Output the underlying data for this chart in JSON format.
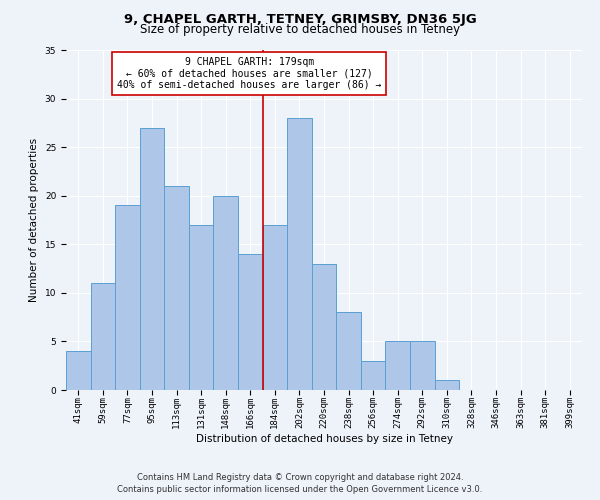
{
  "title": "9, CHAPEL GARTH, TETNEY, GRIMSBY, DN36 5JG",
  "subtitle": "Size of property relative to detached houses in Tetney",
  "xlabel": "Distribution of detached houses by size in Tetney",
  "ylabel": "Number of detached properties",
  "footer_line1": "Contains HM Land Registry data © Crown copyright and database right 2024.",
  "footer_line2": "Contains public sector information licensed under the Open Government Licence v3.0.",
  "categories": [
    "41sqm",
    "59sqm",
    "77sqm",
    "95sqm",
    "113sqm",
    "131sqm",
    "148sqm",
    "166sqm",
    "184sqm",
    "202sqm",
    "220sqm",
    "238sqm",
    "256sqm",
    "274sqm",
    "292sqm",
    "310sqm",
    "328sqm",
    "346sqm",
    "363sqm",
    "381sqm",
    "399sqm"
  ],
  "values": [
    4,
    11,
    19,
    27,
    21,
    17,
    20,
    14,
    17,
    28,
    13,
    8,
    3,
    5,
    5,
    1,
    0,
    0,
    0,
    0,
    0
  ],
  "bar_color": "#aec6e8",
  "bar_edge_color": "#5a9fd4",
  "reference_line_color": "#cc0000",
  "annotation_text": "9 CHAPEL GARTH: 179sqm\n← 60% of detached houses are smaller (127)\n40% of semi-detached houses are larger (86) →",
  "annotation_box_edge_color": "#cc0000",
  "ylim": [
    0,
    35
  ],
  "yticks": [
    0,
    5,
    10,
    15,
    20,
    25,
    30,
    35
  ],
  "background_color": "#eef2f9",
  "grid_color": "#ffffff",
  "title_fontsize": 9.5,
  "subtitle_fontsize": 8.5,
  "axis_label_fontsize": 7.5,
  "tick_fontsize": 6.5,
  "footer_fontsize": 6,
  "annotation_fontsize": 7,
  "ylabel_fontsize": 7.5
}
